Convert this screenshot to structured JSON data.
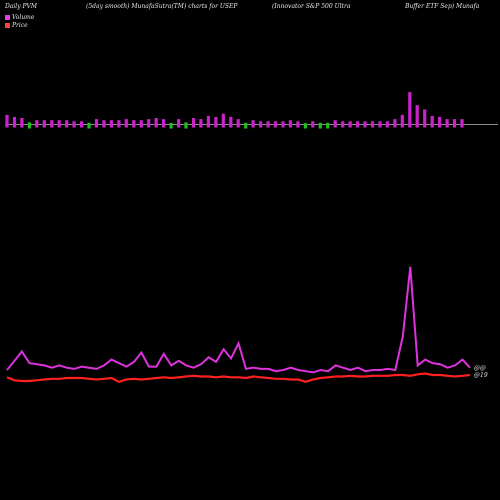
{
  "header": {
    "t1": "Daily PVM",
    "t2": "(5day smooth) MunafaSutra(TM) charts for USEP",
    "t3": "(Innovator S&P 500  Ultra",
    "t4": "Buffer ETF Sep) Munafa"
  },
  "legend": {
    "volume_label": "Volume",
    "price_label": "Price",
    "volume_color": "#e040e0",
    "price_color": "#ff4040"
  },
  "colors": {
    "up_bar": "#cc22cc",
    "down_bar": "#22bb22",
    "volume_line": "#dd33dd",
    "price_line": "#ff2020",
    "axis": "#bbbbbb"
  },
  "chart_data": {
    "type": "line",
    "end_labels": [
      "@@",
      "@19"
    ],
    "bars": [
      {
        "v": 9,
        "up": true
      },
      {
        "v": 7,
        "up": true
      },
      {
        "v": 6,
        "up": true
      },
      {
        "v": 5,
        "up": false
      },
      {
        "v": 4,
        "up": true
      },
      {
        "v": 4,
        "up": true
      },
      {
        "v": 4,
        "up": true
      },
      {
        "v": 4,
        "up": true
      },
      {
        "v": 4,
        "up": true
      },
      {
        "v": 3,
        "up": true
      },
      {
        "v": 3,
        "up": true
      },
      {
        "v": 4,
        "up": false
      },
      {
        "v": 5,
        "up": true
      },
      {
        "v": 4,
        "up": true
      },
      {
        "v": 4,
        "up": true
      },
      {
        "v": 4,
        "up": true
      },
      {
        "v": 5,
        "up": true
      },
      {
        "v": 4,
        "up": true
      },
      {
        "v": 4,
        "up": true
      },
      {
        "v": 5,
        "up": true
      },
      {
        "v": 6,
        "up": true
      },
      {
        "v": 5,
        "up": true
      },
      {
        "v": 4,
        "up": false
      },
      {
        "v": 5,
        "up": true
      },
      {
        "v": 5,
        "up": false
      },
      {
        "v": 6,
        "up": true
      },
      {
        "v": 5,
        "up": true
      },
      {
        "v": 8,
        "up": true
      },
      {
        "v": 7,
        "up": true
      },
      {
        "v": 10,
        "up": true
      },
      {
        "v": 7,
        "up": true
      },
      {
        "v": 5,
        "up": true
      },
      {
        "v": 4,
        "up": false
      },
      {
        "v": 4,
        "up": true
      },
      {
        "v": 3,
        "up": true
      },
      {
        "v": 3,
        "up": true
      },
      {
        "v": 3,
        "up": true
      },
      {
        "v": 3,
        "up": true
      },
      {
        "v": 4,
        "up": true
      },
      {
        "v": 3,
        "up": true
      },
      {
        "v": 3,
        "up": false
      },
      {
        "v": 3,
        "up": true
      },
      {
        "v": 4,
        "up": false
      },
      {
        "v": 4,
        "up": false
      },
      {
        "v": 4,
        "up": true
      },
      {
        "v": 3,
        "up": true
      },
      {
        "v": 3,
        "up": true
      },
      {
        "v": 3,
        "up": true
      },
      {
        "v": 3,
        "up": true
      },
      {
        "v": 3,
        "up": true
      },
      {
        "v": 3,
        "up": true
      },
      {
        "v": 3,
        "up": true
      },
      {
        "v": 5,
        "up": true
      },
      {
        "v": 9,
        "up": true
      },
      {
        "v": 30,
        "up": true
      },
      {
        "v": 18,
        "up": true
      },
      {
        "v": 14,
        "up": true
      },
      {
        "v": 8,
        "up": true
      },
      {
        "v": 7,
        "up": true
      },
      {
        "v": 5,
        "up": true
      },
      {
        "v": 5,
        "up": true
      },
      {
        "v": 5,
        "up": true
      }
    ],
    "volume_line": [
      6,
      14,
      22,
      12,
      11,
      10,
      8,
      10,
      8,
      7,
      9,
      8,
      7,
      10,
      15,
      12,
      9,
      13,
      21,
      9,
      9,
      20,
      10,
      14,
      10,
      8,
      11,
      17,
      13,
      24,
      16,
      29,
      7,
      8,
      7,
      7,
      5,
      6,
      8,
      6,
      5,
      4,
      6,
      5,
      10,
      8,
      6,
      8,
      5,
      6,
      6,
      7,
      6,
      35,
      95,
      10,
      15,
      12,
      11,
      8,
      10,
      15,
      8
    ],
    "price_line": [
      5,
      1,
      0,
      0,
      1,
      2,
      3,
      3,
      4,
      4,
      4,
      3,
      2,
      3,
      4,
      -1,
      2,
      3,
      2,
      3,
      4,
      5,
      4,
      5,
      6,
      7,
      6,
      6,
      5,
      6,
      5,
      5,
      4,
      6,
      5,
      4,
      3,
      3,
      2,
      2,
      -1,
      2,
      4,
      5,
      6,
      6,
      7,
      6,
      6,
      7,
      7,
      7,
      8,
      8,
      7,
      9,
      10,
      8,
      8,
      7,
      6,
      7,
      8
    ]
  }
}
